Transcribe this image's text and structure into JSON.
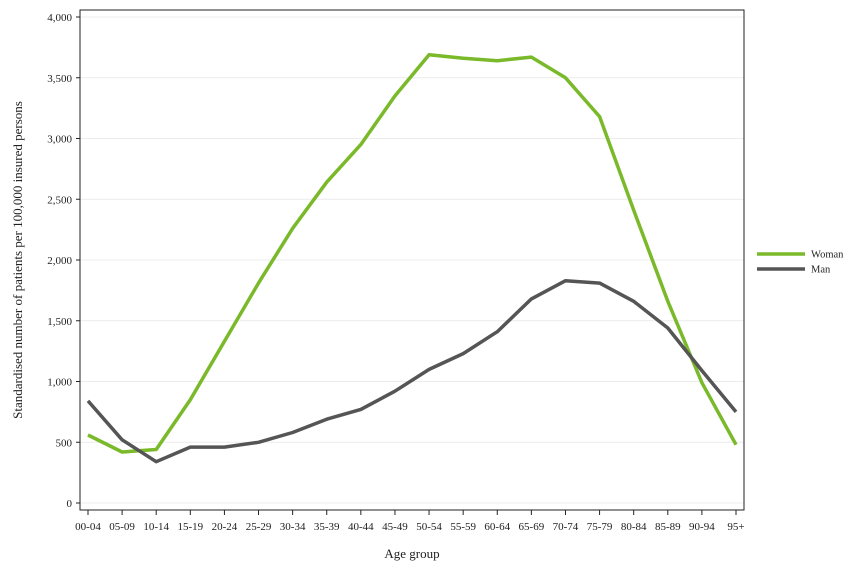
{
  "chart_data": {
    "type": "line",
    "title": "",
    "xlabel": "Age group",
    "ylabel": "Standardised number of patients per 100,000 insured persons",
    "categories": [
      "00-04",
      "05-09",
      "10-14",
      "15-19",
      "20-24",
      "25-29",
      "30-34",
      "35-39",
      "40-44",
      "45-49",
      "50-54",
      "55-59",
      "60-64",
      "65-69",
      "70-74",
      "75-79",
      "80-84",
      "85-89",
      "90-94",
      "95+"
    ],
    "ylim": [
      0,
      4000
    ],
    "yticks": [
      0,
      500,
      1000,
      1500,
      2000,
      2500,
      3000,
      3500,
      4000
    ],
    "ytick_labels": [
      "0",
      "500",
      "1,000",
      "1,500",
      "2,000",
      "2,500",
      "3,000",
      "3,500",
      "4,000"
    ],
    "grid": true,
    "legend_position": "right",
    "series": [
      {
        "name": "Woman",
        "color": "#7ab929",
        "values": [
          560,
          420,
          440,
          850,
          1330,
          1810,
          2260,
          2640,
          2950,
          3350,
          3690,
          3660,
          3640,
          3670,
          3500,
          3180,
          2410,
          1660,
          990,
          480
        ]
      },
      {
        "name": "Man",
        "color": "#555555",
        "values": [
          840,
          520,
          340,
          460,
          460,
          500,
          580,
          690,
          770,
          920,
          1100,
          1230,
          1410,
          1680,
          1830,
          1810,
          1660,
          1440,
          1090,
          750
        ]
      }
    ]
  }
}
